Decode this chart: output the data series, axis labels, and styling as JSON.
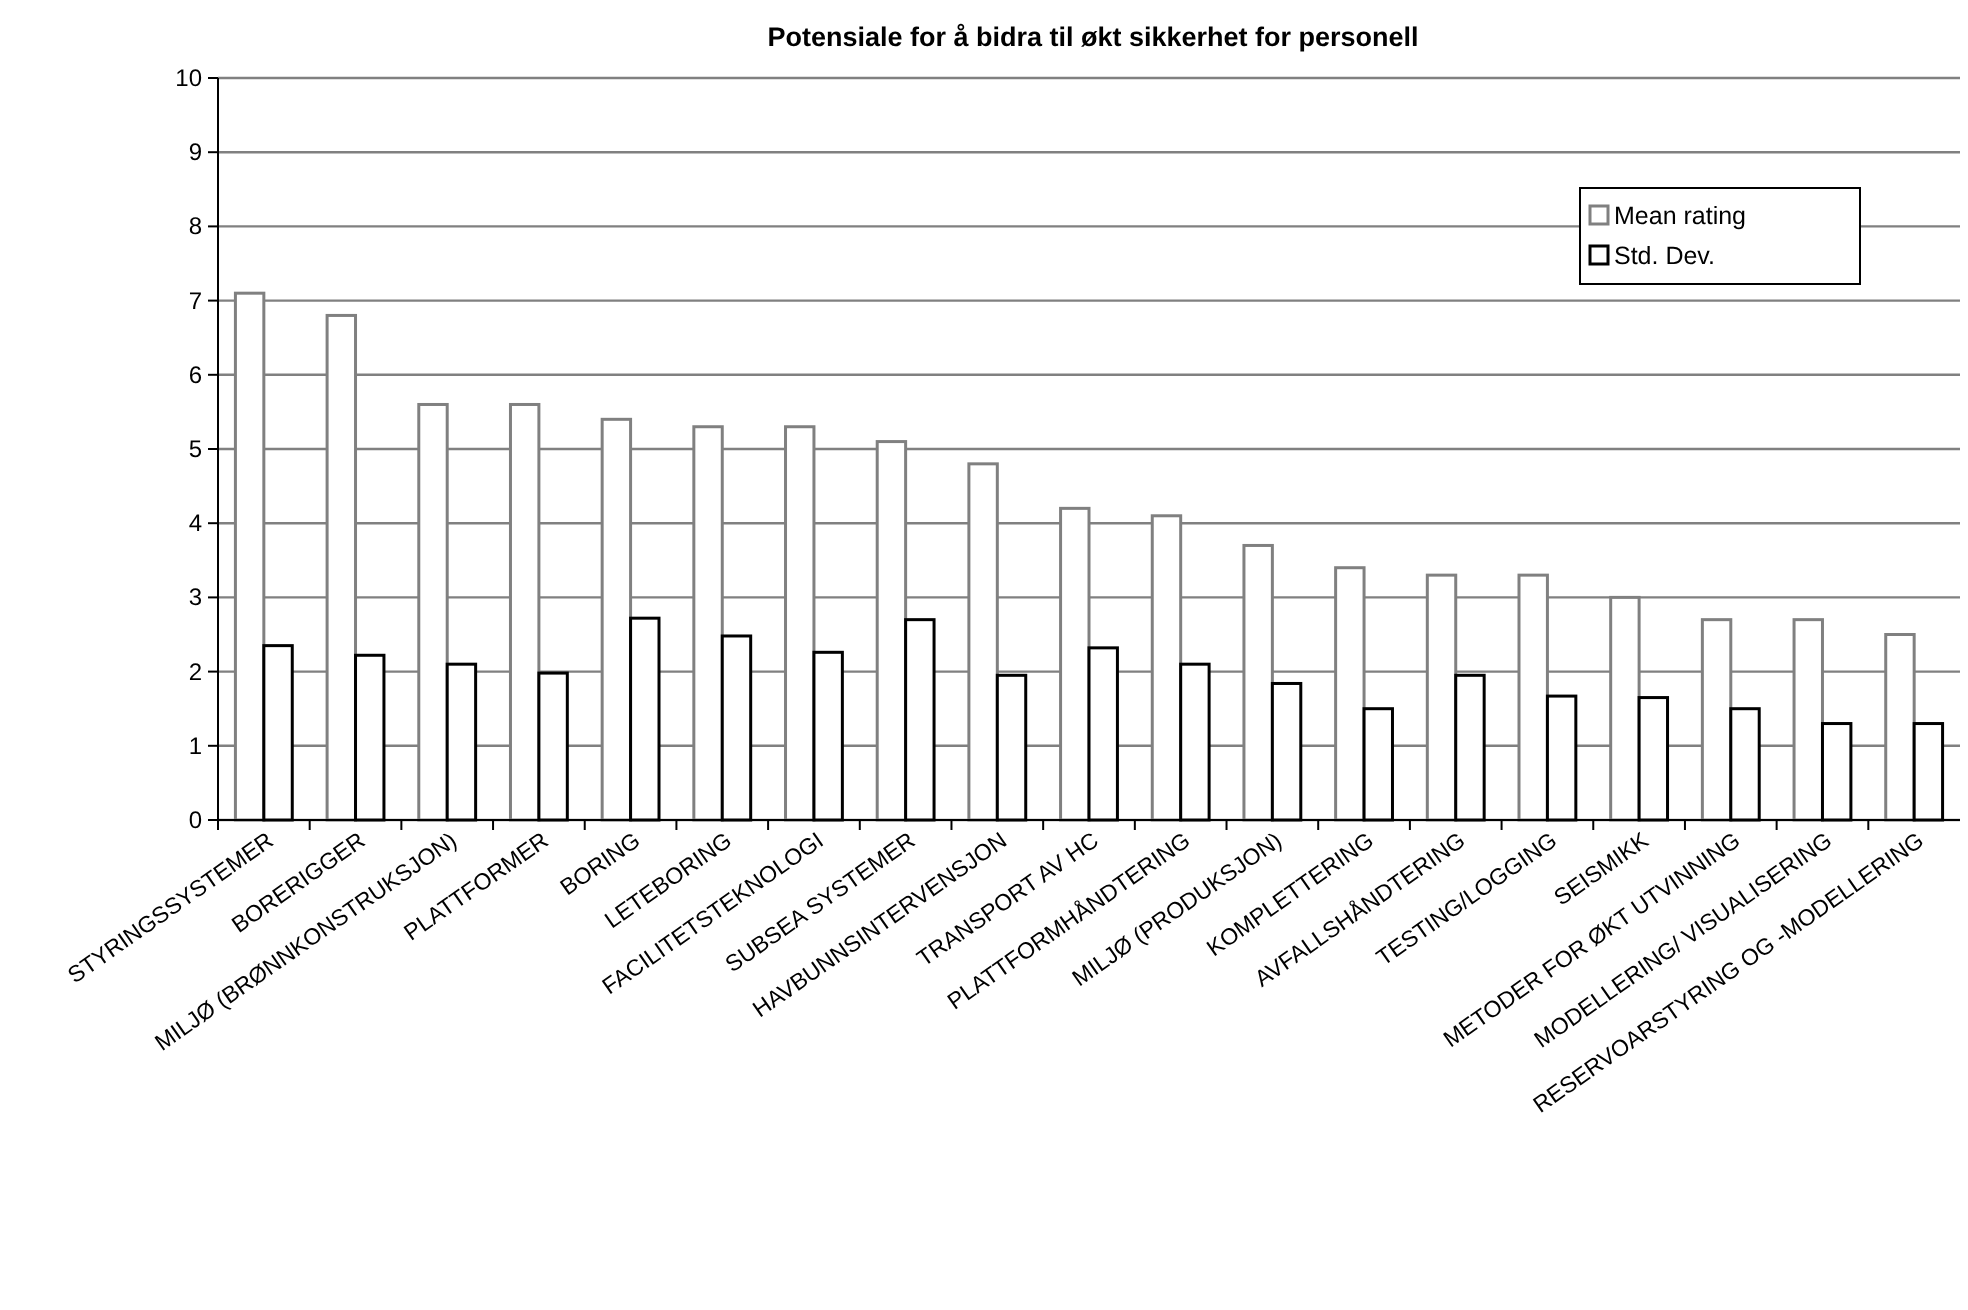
{
  "chart_data": {
    "type": "bar",
    "title": "Potensiale for å bidra til økt sikkerhet for personell",
    "categories": [
      "STYRINGSSYSTEMER",
      "BORERIGGER",
      "MILJØ (BRØNNKONSTRUKSJON)",
      "PLATTFORMER",
      "BORING",
      "LETEBORING",
      "FACILITETSTEKNOLOGI",
      "SUBSEA SYSTEMER",
      "HAVBUNNSINTERVENSJON",
      "TRANSPORT AV HC",
      "PLATTFORMHÅNDTERING",
      "MILJØ (PRODUKSJON)",
      "KOMPLETTERING",
      "AVFALLSHÅNDTERING",
      "TESTING/LOGGING",
      "SEISMIKK",
      "METODER FOR ØKT UTVINNING",
      "MODELLERING/ VISUALISERING",
      "RESERVOARSTYRING OG -MODELLERING"
    ],
    "series": [
      {
        "name": "Mean rating",
        "color": "#808080",
        "values": [
          7.1,
          6.8,
          5.6,
          5.6,
          5.4,
          5.3,
          5.3,
          5.1,
          4.8,
          4.2,
          4.1,
          3.7,
          3.4,
          3.3,
          3.3,
          3.0,
          2.7,
          2.7,
          2.5
        ]
      },
      {
        "name": "Std. Dev.",
        "color": "#000000",
        "values": [
          2.35,
          2.22,
          2.1,
          1.98,
          2.72,
          2.48,
          2.26,
          2.7,
          1.95,
          2.32,
          2.1,
          1.84,
          1.5,
          1.95,
          1.67,
          1.65,
          1.5,
          1.3,
          1.3
        ]
      }
    ],
    "ylim": [
      0,
      10
    ],
    "yticks": [
      0,
      1,
      2,
      3,
      4,
      5,
      6,
      7,
      8,
      9,
      10
    ],
    "grid": "y",
    "legend": "top right"
  }
}
